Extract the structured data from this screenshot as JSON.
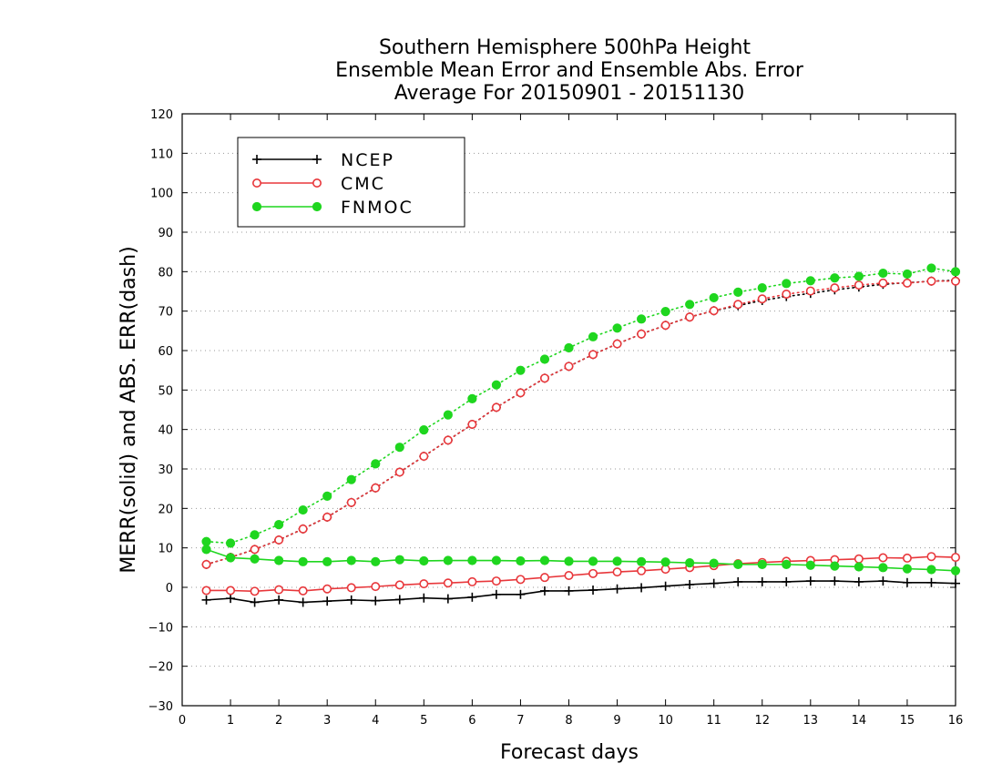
{
  "chart_data": {
    "type": "line",
    "title": [
      "Southern Hemisphere 500hPa Height",
      "Ensemble Mean Error and Ensemble Abs. Error",
      "Average For 20150901 - 20151130"
    ],
    "xlabel": "Forecast days",
    "ylabel": "MERR(solid) and ABS. ERR(dash)",
    "xlim": [
      0,
      16
    ],
    "ylim": [
      -30,
      120
    ],
    "xticks": [
      0,
      1,
      2,
      3,
      4,
      5,
      6,
      7,
      8,
      9,
      10,
      11,
      12,
      13,
      14,
      15,
      16
    ],
    "yticks": [
      -30,
      -20,
      -10,
      0,
      10,
      20,
      30,
      40,
      50,
      60,
      70,
      80,
      90,
      100,
      110,
      120
    ],
    "grid": "horizontal dotted",
    "legend_position": "top-left",
    "x": [
      0.5,
      1,
      1.5,
      2,
      2.5,
      3,
      3.5,
      4,
      4.5,
      5,
      5.5,
      6,
      6.5,
      7,
      7.5,
      8,
      8.5,
      9,
      9.5,
      10,
      10.5,
      11,
      11.5,
      12,
      12.5,
      13,
      13.5,
      14,
      14.5,
      15,
      15.5,
      16
    ],
    "series": [
      {
        "name": "NCEP",
        "color": "#000000",
        "marker": "plus",
        "merr": [
          -3.2,
          -2.8,
          -3.8,
          -3.2,
          -3.8,
          -3.5,
          -3.2,
          -3.4,
          -3.1,
          -2.7,
          -2.9,
          -2.5,
          -1.8,
          -1.8,
          -0.9,
          -0.9,
          -0.7,
          -0.4,
          -0.1,
          0.3,
          0.7,
          1.0,
          1.4,
          1.4,
          1.4,
          1.6,
          1.6,
          1.4,
          1.6,
          1.2,
          1.2,
          1.0
        ],
        "abs_err": [
          5.8,
          7.6,
          9.6,
          12.0,
          14.8,
          17.8,
          21.5,
          25.2,
          29.2,
          33.2,
          37.3,
          41.3,
          45.6,
          49.3,
          53.0,
          56.0,
          59.0,
          61.7,
          64.2,
          66.4,
          68.5,
          70.1,
          71.4,
          72.7,
          73.7,
          74.5,
          75.4,
          76.1,
          76.8,
          77.2,
          77.6,
          77.8
        ]
      },
      {
        "name": "CMC",
        "color": "#e8373b",
        "marker": "open-circle",
        "merr": [
          -0.8,
          -0.8,
          -1.0,
          -0.6,
          -0.9,
          -0.4,
          -0.1,
          0.2,
          0.6,
          0.9,
          1.1,
          1.4,
          1.6,
          2.0,
          2.5,
          3.0,
          3.5,
          3.9,
          4.2,
          4.6,
          5.0,
          5.5,
          6.0,
          6.3,
          6.6,
          6.8,
          7.0,
          7.2,
          7.5,
          7.4,
          7.8,
          7.6
        ],
        "abs_err": [
          5.8,
          7.6,
          9.6,
          12.0,
          14.8,
          17.8,
          21.5,
          25.2,
          29.2,
          33.2,
          37.3,
          41.3,
          45.6,
          49.3,
          53.0,
          56.0,
          59.0,
          61.7,
          64.2,
          66.4,
          68.5,
          70.1,
          71.7,
          73.1,
          74.3,
          75.1,
          75.9,
          76.6,
          77.1,
          77.1,
          77.6,
          77.6
        ]
      },
      {
        "name": "FNMOC",
        "color": "#1fd61f",
        "marker": "filled-circle",
        "merr": [
          9.6,
          7.5,
          7.2,
          6.8,
          6.5,
          6.5,
          6.8,
          6.5,
          7.0,
          6.7,
          6.8,
          6.8,
          6.8,
          6.7,
          6.8,
          6.6,
          6.6,
          6.6,
          6.5,
          6.4,
          6.2,
          6.1,
          5.8,
          5.8,
          5.8,
          5.6,
          5.4,
          5.2,
          5.0,
          4.7,
          4.5,
          4.2
        ],
        "abs_err": [
          11.6,
          11.2,
          13.3,
          15.9,
          19.6,
          23.1,
          27.3,
          31.3,
          35.5,
          39.9,
          43.7,
          47.8,
          51.3,
          55.0,
          57.8,
          60.7,
          63.5,
          65.7,
          68.0,
          69.9,
          71.7,
          73.4,
          74.8,
          75.9,
          77.0,
          77.7,
          78.4,
          78.8,
          79.6,
          79.4,
          80.9,
          80.0
        ]
      }
    ]
  }
}
